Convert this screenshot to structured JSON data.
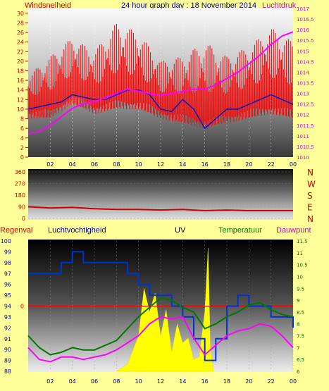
{
  "header": {
    "left_label": "Windsnelheid",
    "title": "24 hour graph day : 18 November 2014",
    "right_label": "Luchtdruk"
  },
  "legend_bottom": {
    "regenval": "Regenval",
    "luchtvochtigheid": "Luchtvochtigheid",
    "uv": "UV",
    "temperatuur": "Temperatuur",
    "dauwpunt": "Dauwpunt"
  },
  "colors": {
    "background": "#ffff99",
    "wind": "#ff0000",
    "wind_avg": "#0000cc",
    "pressure": "#ff00ff",
    "humidity": "#0033cc",
    "temperature": "#007700",
    "dewpoint": "#ff00ff",
    "uv": "#ffff00",
    "direction": "#cc0000",
    "zero_line": "#ff0000"
  },
  "chart_data": [
    {
      "type": "line",
      "name": "wind-pressure",
      "x_ticks": [
        "02",
        "04",
        "06",
        "08",
        "10",
        "12",
        "14",
        "16",
        "18",
        "20",
        "22",
        "00"
      ],
      "left_axis": {
        "label": "Windsnelheid",
        "ylim": [
          0,
          31
        ],
        "ticks": [
          0,
          2,
          4,
          6,
          8,
          10,
          12,
          14,
          16,
          18,
          20,
          22,
          24,
          26,
          28,
          30
        ]
      },
      "right_axis": {
        "label": "Luchtdruk",
        "ylim": [
          1010,
          1017
        ],
        "ticks": [
          "1010",
          "1010.5",
          "1011",
          "1011.5",
          "1012",
          "1012.5",
          "1013",
          "1013.5",
          "1014",
          "1014.5",
          "1015",
          "1015.5",
          "1016",
          "1016.5",
          "1017"
        ]
      },
      "series": [
        {
          "name": "Windsnelheid",
          "axis": "left",
          "style": "gust-bars",
          "x": [
            0,
            2,
            4,
            6,
            8,
            10,
            12,
            14,
            16,
            18,
            20,
            22,
            24
          ],
          "low": [
            10,
            10,
            13,
            11,
            12,
            12,
            10,
            9,
            8,
            9,
            10,
            11,
            10
          ],
          "high": [
            17,
            21,
            25,
            22,
            28,
            26,
            20,
            21,
            24,
            21,
            23,
            27,
            24
          ]
        },
        {
          "name": "Gemiddeld",
          "axis": "left",
          "x": [
            0,
            1,
            2,
            3,
            4,
            5,
            6,
            7,
            8,
            9,
            10,
            11,
            12,
            13,
            14,
            15,
            16,
            17,
            18,
            19,
            20,
            21,
            22,
            23,
            24
          ],
          "values": [
            10,
            10.5,
            11,
            11.5,
            13,
            12.5,
            12,
            12,
            13,
            14,
            14,
            13,
            10,
            9.5,
            12,
            10,
            6,
            8,
            10,
            10,
            11,
            12,
            13,
            12,
            11
          ]
        },
        {
          "name": "Luchtdruk",
          "axis": "right",
          "x": [
            0,
            1,
            2,
            3,
            4,
            5,
            6,
            7,
            8,
            9,
            10,
            11,
            12,
            13,
            14,
            15,
            16,
            17,
            18,
            19,
            20,
            21,
            22,
            23,
            24
          ],
          "values": [
            1011.1,
            1011.2,
            1011.5,
            1011.9,
            1012.3,
            1012.5,
            1012.6,
            1012.8,
            1013.0,
            1013.2,
            1013.1,
            1013.0,
            1012.9,
            1013.0,
            1013.1,
            1013.2,
            1013.2,
            1013.4,
            1013.7,
            1014.0,
            1014.4,
            1014.8,
            1015.3,
            1015.7,
            1015.9
          ]
        }
      ]
    },
    {
      "type": "line",
      "name": "wind-direction",
      "y_ticks": [
        "360",
        "270",
        "180",
        "90",
        "0"
      ],
      "right_labels": [
        "N",
        "W",
        "S",
        "E",
        "N"
      ],
      "ylim": [
        0,
        360
      ],
      "series": [
        {
          "name": "Windrichting",
          "x": [
            0,
            2,
            4,
            6,
            8,
            10,
            12,
            14,
            16,
            18,
            20,
            22,
            24
          ],
          "values": [
            90,
            80,
            85,
            75,
            70,
            70,
            65,
            70,
            60,
            65,
            60,
            60,
            60
          ]
        }
      ]
    },
    {
      "type": "line",
      "name": "humidity-temperature",
      "left_axis": {
        "label": "Luchtvochtigheid",
        "ylim": [
          88,
          100
        ],
        "ticks": [
          88,
          89,
          90,
          91,
          92,
          93,
          94,
          95,
          96,
          97,
          98,
          99,
          100
        ]
      },
      "right_axis": {
        "label": "Temperatuur",
        "ylim": [
          6,
          11.5
        ],
        "ticks": [
          "6",
          "6.5",
          "7",
          "7.5",
          "8",
          "8.5",
          "9",
          "9.5",
          "10",
          "10.5",
          "11",
          "11.5"
        ]
      },
      "zero_label": "0",
      "x_ticks": [
        "02",
        "04",
        "06",
        "08",
        "10",
        "12",
        "14",
        "16",
        "18",
        "20",
        "22",
        "00"
      ],
      "series": [
        {
          "name": "Luchtvochtigheid",
          "axis": "left",
          "step": true,
          "x": [
            0,
            2,
            3,
            4,
            5,
            6,
            8,
            9,
            10,
            11,
            12,
            13,
            14,
            15,
            16,
            17,
            18,
            19,
            20,
            21,
            22,
            23,
            24
          ],
          "values": [
            97,
            97,
            98,
            99,
            98,
            98,
            98,
            97,
            96,
            95,
            95,
            94,
            93,
            91,
            89,
            91,
            94,
            95,
            94,
            94,
            93,
            93,
            92
          ]
        },
        {
          "name": "Temperatuur",
          "axis": "right",
          "x": [
            0,
            1,
            2,
            3,
            4,
            5,
            6,
            7,
            8,
            9,
            10,
            11,
            12,
            13,
            14,
            15,
            16,
            17,
            18,
            19,
            20,
            21,
            22,
            23,
            24
          ],
          "values": [
            7.5,
            7,
            6.7,
            6.8,
            7,
            6.9,
            6.9,
            7.1,
            7.3,
            7.8,
            8.3,
            8.7,
            9.1,
            9.0,
            8.7,
            8.5,
            7.8,
            8.0,
            8.3,
            8.5,
            8.8,
            8.9,
            8.6,
            8.4,
            8.3
          ]
        },
        {
          "name": "Dauwpunt",
          "axis": "right",
          "x": [
            0,
            1,
            2,
            3,
            4,
            5,
            6,
            7,
            8,
            9,
            10,
            11,
            12,
            13,
            14,
            15,
            16,
            17,
            18,
            19,
            20,
            21,
            22,
            23,
            24
          ],
          "values": [
            7,
            6.5,
            6.4,
            6.6,
            6.6,
            6.5,
            6.6,
            6.7,
            6.9,
            7.2,
            7.5,
            8.0,
            8.3,
            8.2,
            8.3,
            7.4,
            6.7,
            7.1,
            7.5,
            7.7,
            7.8,
            8.0,
            7.9,
            7.5,
            7.0
          ]
        },
        {
          "name": "UV",
          "axis": "right",
          "style": "fill",
          "x": [
            8,
            9,
            10,
            10.5,
            11,
            11.5,
            12,
            12.5,
            13,
            13.5,
            14,
            14.5,
            15,
            15.5,
            16,
            16.3,
            16.5,
            16.8
          ],
          "values": [
            6,
            6.3,
            7.5,
            9.5,
            8.5,
            9.3,
            7.5,
            8.6,
            6.8,
            8,
            7.2,
            7.4,
            6.5,
            6.6,
            8.5,
            11.2,
            7,
            6
          ]
        }
      ]
    }
  ]
}
